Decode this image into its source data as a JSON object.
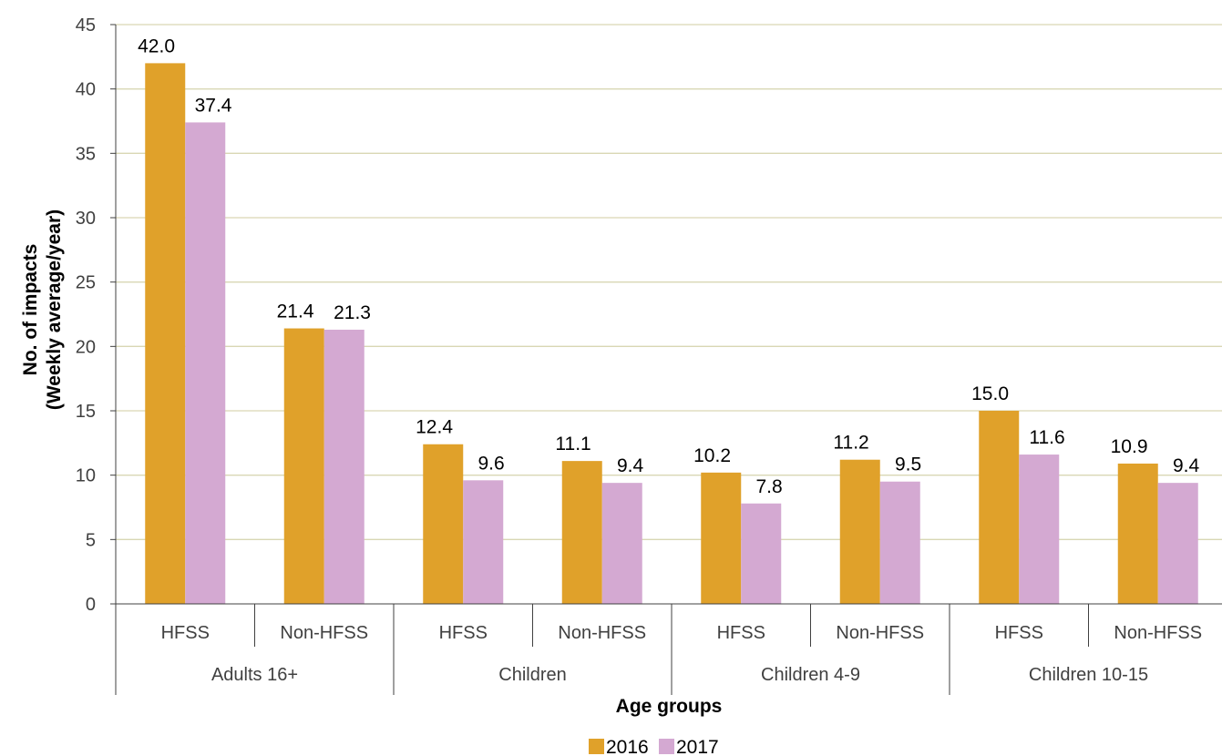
{
  "chart_data": {
    "type": "bar",
    "categories": [
      "HFSS",
      "Non-HFSS",
      "HFSS",
      "Non-HFSS",
      "HFSS",
      "Non-HFSS",
      "HFSS",
      "Non-HFSS"
    ],
    "groups": [
      "Adults 16+",
      "Children",
      "Children 4-9",
      "Children 10-15"
    ],
    "series": [
      {
        "name": "2016",
        "color": "#E0A12A",
        "values": [
          42.0,
          21.4,
          12.4,
          11.1,
          10.2,
          11.2,
          15.0,
          10.9
        ]
      },
      {
        "name": "2017",
        "color": "#D4A9D2",
        "values": [
          37.4,
          21.3,
          9.6,
          9.4,
          7.8,
          9.5,
          11.6,
          9.4
        ]
      }
    ],
    "data_labels": [
      [
        "42.0",
        "21.4",
        "12.4",
        "11.1",
        "10.2",
        "11.2",
        "15.0",
        "10.9"
      ],
      [
        "37.4",
        "21.3",
        "9.6",
        "9.4",
        "7.8",
        "9.5",
        "11.6",
        "9.4"
      ]
    ],
    "xlabel": "Age groups",
    "ylabel_lines": [
      "No. of impacts",
      "(Weekly average/year)"
    ],
    "ylim": [
      0,
      45
    ],
    "yticks": [
      0,
      5,
      10,
      15,
      20,
      25,
      30,
      35,
      40,
      45
    ],
    "ytick_labels": [
      "0",
      "5",
      "10",
      "15",
      "20",
      "25",
      "30",
      "35",
      "40",
      "45"
    ],
    "grid": true,
    "gridline_color": "#D9D7B4",
    "legend": "bottom-center"
  }
}
